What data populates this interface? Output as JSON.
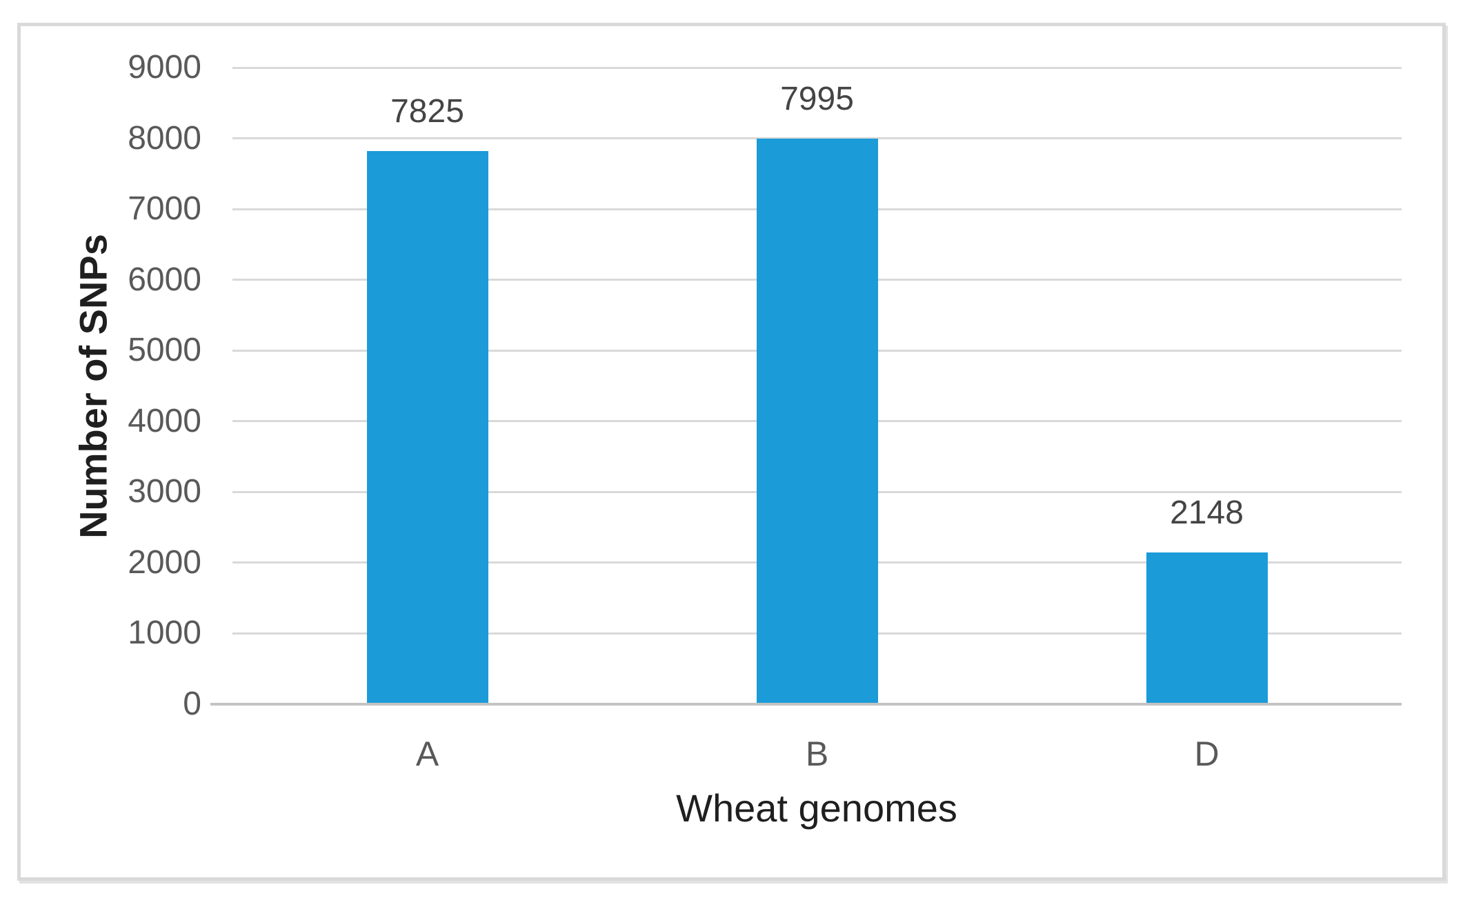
{
  "chart_data": {
    "type": "bar",
    "title": "",
    "categories": [
      "A",
      "B",
      "D"
    ],
    "values": [
      7825,
      7995,
      2148
    ],
    "data_labels": [
      "7825",
      "7995",
      "2148"
    ],
    "xlabel": "Wheat genomes",
    "ylabel": "Number of SNPs",
    "ylim": [
      0,
      9000
    ],
    "ytick_step": 1000,
    "yticks": [
      9000,
      8000,
      7000,
      6000,
      5000,
      4000,
      3000,
      2000,
      1000,
      0
    ],
    "grid": true,
    "legend": "none",
    "bar_color": "#1b9bd8",
    "gridline_color": "#d9d9d9",
    "axis_line_color": "#c4c4c4",
    "tick_label_color": "#595959",
    "data_label_color": "#444444",
    "category_label_color": "#595959",
    "axis_title_color": "#1f1f1f",
    "frame_border_color": "#d9d9d9"
  }
}
